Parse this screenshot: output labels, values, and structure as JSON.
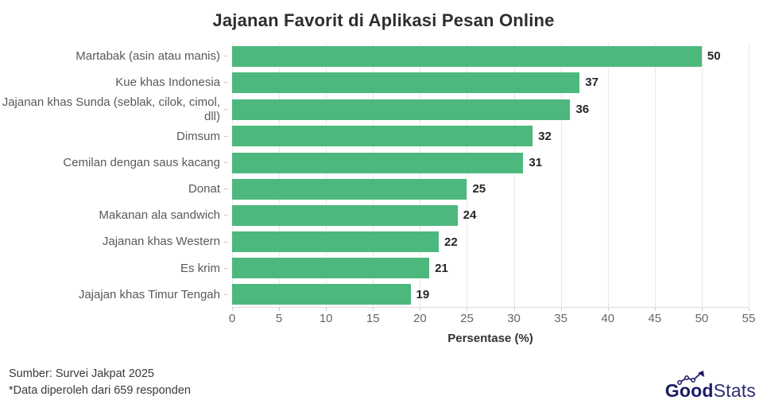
{
  "title": "Jajanan Favorit di Aplikasi Pesan Online",
  "chart_data": {
    "type": "bar",
    "orientation": "horizontal",
    "title": "Jajanan Favorit di Aplikasi Pesan Online",
    "categories": [
      "Martabak (asin atau manis)",
      "Kue khas Indonesia",
      "Jajanan khas Sunda (seblak, cilok, cimol, dll)",
      "Dimsum",
      "Cemilan dengan saus kacang",
      "Donat",
      "Makanan ala sandwich",
      "Jajanan khas Western",
      "Es krim",
      "Jajajan khas Timur Tengah"
    ],
    "values": [
      50,
      37,
      36,
      32,
      31,
      25,
      24,
      22,
      21,
      19
    ],
    "xlabel": "Persentase (%)",
    "xlim": [
      0,
      55
    ],
    "xticks": [
      0,
      5,
      10,
      15,
      20,
      25,
      30,
      35,
      40,
      45,
      50,
      55
    ],
    "grid": true,
    "bar_color": "#4db87e",
    "gridline_color": "#e8e8e8",
    "value_label_color": "#262626",
    "category_label_color": "#595959"
  },
  "footer": {
    "source": "Sumber: Survei Jakpat 2025",
    "note": "*Data diperoleh dari 659 responden"
  },
  "logo": {
    "bold_part": "Good",
    "light_part": "Stats",
    "color": "#1b1a64"
  }
}
